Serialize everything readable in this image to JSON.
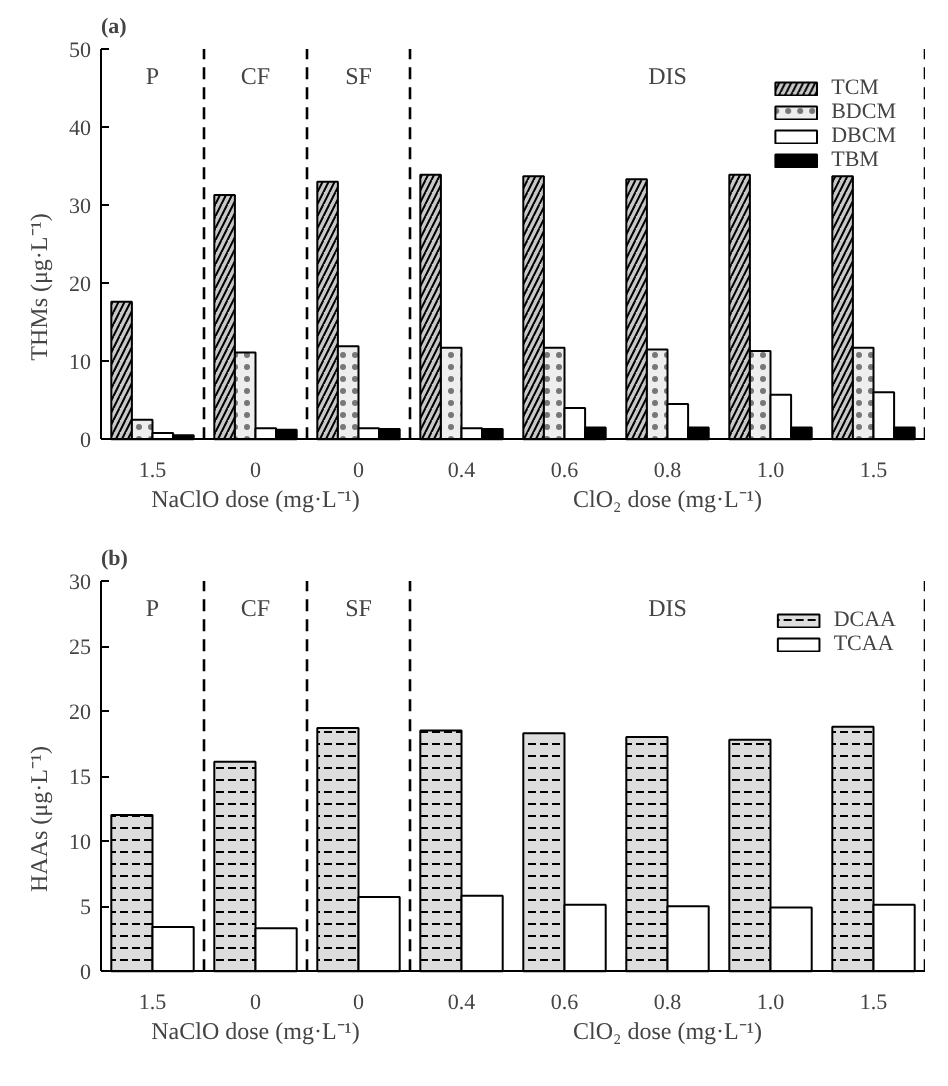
{
  "chart_data": [
    {
      "type": "bar",
      "title": "(a)",
      "ylabel": "THMs (μg·L⁻¹)",
      "categories": [
        "1.5",
        "0",
        "0",
        "0.4",
        "0.6",
        "0.8",
        "1.0",
        "1.5"
      ],
      "series": [
        {
          "name": "TCM",
          "color": "#c8c8c8",
          "values": [
            17.6,
            31.3,
            33.0,
            33.9,
            33.7,
            33.3,
            33.9,
            33.7
          ]
        },
        {
          "name": "BDCM",
          "color": "#eeeeee",
          "values": [
            2.5,
            11.1,
            11.9,
            11.7,
            11.7,
            11.5,
            11.3,
            11.7
          ]
        },
        {
          "name": "DBCM",
          "color": "#ffffff",
          "values": [
            0.8,
            1.4,
            1.4,
            1.4,
            4.0,
            4.5,
            5.7,
            6.0
          ]
        },
        {
          "name": "TBM",
          "color": "#000000",
          "values": [
            0.5,
            1.2,
            1.3,
            1.3,
            1.5,
            1.5,
            1.5,
            1.5
          ]
        }
      ],
      "ylim": [
        0,
        50
      ],
      "yticks": [
        0,
        10,
        20,
        30,
        40,
        50
      ],
      "legend": "top right",
      "grid": false,
      "annotations": [
        "P",
        "CF",
        "SF",
        "DIS",
        "NaClO dose (mg·L⁻¹)",
        "ClO₂ dose (mg·L⁻¹)"
      ]
    },
    {
      "type": "bar",
      "title": "(b)",
      "ylabel": "HAAs (μg·L⁻¹)",
      "categories": [
        "1.5",
        "0",
        "0",
        "0.4",
        "0.6",
        "0.8",
        "1.0",
        "1.5"
      ],
      "series": [
        {
          "name": "DCAA",
          "color": "#dddddd",
          "values": [
            12.0,
            16.1,
            18.7,
            18.5,
            18.3,
            18.0,
            17.8,
            18.8
          ]
        },
        {
          "name": "TCAA",
          "color": "#ffffff",
          "values": [
            3.4,
            3.3,
            5.7,
            5.8,
            5.1,
            5.0,
            4.9,
            5.1
          ]
        }
      ],
      "ylim": [
        0,
        30
      ],
      "yticks": [
        0,
        5,
        10,
        15,
        20,
        25,
        30
      ],
      "legend": "top right",
      "grid": false,
      "annotations": [
        "P",
        "CF",
        "SF",
        "DIS",
        "NaClO dose (mg·L⁻¹)",
        "ClO₂ dose (mg·L⁻¹)"
      ]
    }
  ]
}
